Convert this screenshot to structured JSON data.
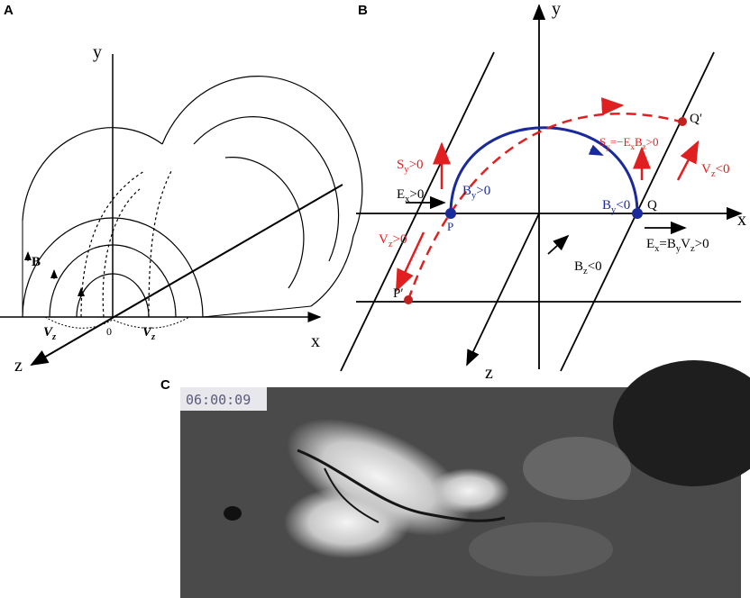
{
  "panel_a": {
    "label": "A",
    "axis_y": "y",
    "axis_x": "x",
    "axis_z": "z",
    "origin": "0",
    "field": "B",
    "vz_left": [
      "V",
      "z"
    ],
    "vz_right": [
      "V",
      "z"
    ]
  },
  "panel_b": {
    "label": "B",
    "axis_y": "y",
    "axis_x": "x",
    "axis_z": "z",
    "notes": [
      [
        "S",
        "y",
        ">0"
      ],
      [
        "B",
        "y",
        ">0"
      ],
      [
        "E",
        "x",
        ">0"
      ],
      [
        "P"
      ],
      [
        "V",
        "z",
        ">0"
      ],
      [
        "P′"
      ],
      [
        "S",
        "y",
        "=−E",
        "x",
        "B",
        "z",
        ">0"
      ],
      [
        "Q′"
      ],
      [
        "V",
        "z",
        "<0"
      ],
      [
        "B",
        "y",
        "<0"
      ],
      [
        "Q"
      ],
      [
        "E",
        "x",
        "=B",
        "y",
        "V",
        "z",
        ">0"
      ],
      [
        "B",
        "z",
        "<0"
      ]
    ]
  },
  "panel_c": {
    "label": "C",
    "timestamp": "06:00:09"
  }
}
